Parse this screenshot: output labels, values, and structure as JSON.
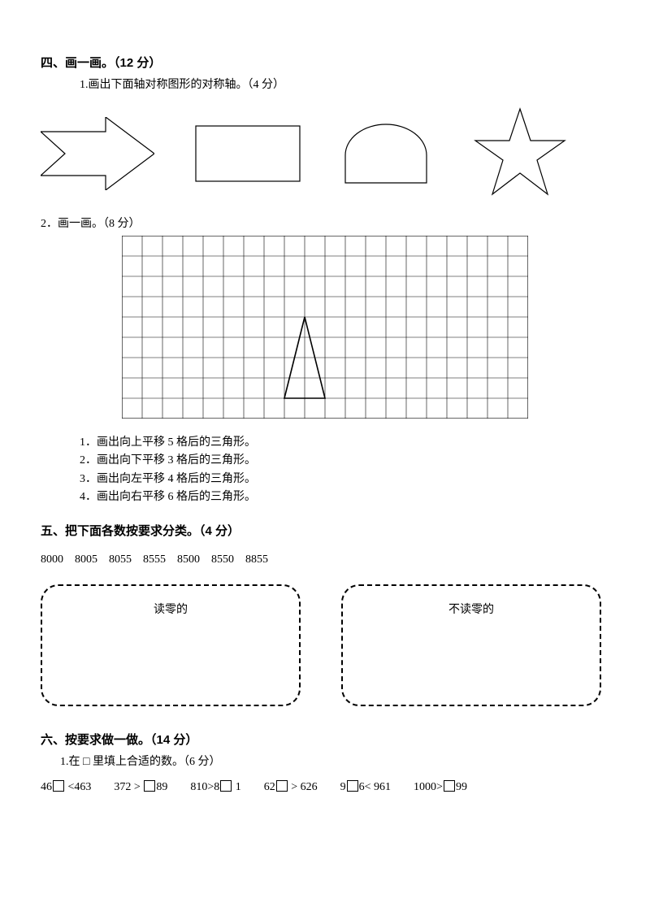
{
  "section4": {
    "title": "四、画一画。（12 分）",
    "q1": "1.画出下面轴对称图形的对称轴。（4 分）",
    "q2": "2．画一画。（8 分）",
    "tasks": [
      "1．画出向上平移 5 格后的三角形。",
      "2．画出向下平移 3 格后的三角形。",
      "3．画出向左平移 4 格后的三角形。",
      "4．画出向右平移 6 格后的三角形。"
    ],
    "grid": {
      "cols": 20,
      "rows": 9,
      "cell": 25
    },
    "triangle": {
      "apex_col": 9,
      "apex_row": 4,
      "base_left_col": 8,
      "base_right_col": 10,
      "base_row": 8
    }
  },
  "section5": {
    "title": "五、把下面各数按要求分类。（4 分）",
    "numbers": "8000　8005　8055　8555　8500　8550　8855",
    "box_left": "读零的",
    "box_right": "不读零的"
  },
  "section6": {
    "title": "六、按要求做一做。（14 分）",
    "q1": "1.在 □ 里填上合适的数。（6 分）",
    "items": [
      {
        "pre": "46",
        "mid": " <463"
      },
      {
        "pre": "372 > ",
        "mid": "89"
      },
      {
        "pre": "810>8",
        "mid": " 1"
      },
      {
        "pre": "62",
        "mid": " > 626"
      },
      {
        "pre": "9",
        "mid": "6< 961"
      },
      {
        "pre": "1000>",
        "mid": "99"
      }
    ]
  },
  "colors": {
    "text": "#000000",
    "bg": "#ffffff"
  }
}
